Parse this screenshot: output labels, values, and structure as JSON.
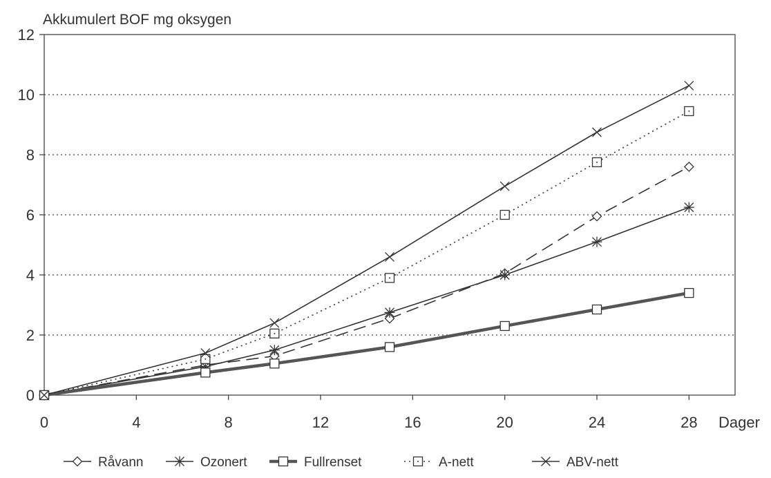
{
  "chart_data": {
    "type": "line",
    "title": "Akkumulert BOF mg oksygen",
    "xlabel": "Dager",
    "ylabel": "",
    "xlim": [
      0,
      30
    ],
    "ylim": [
      0,
      12
    ],
    "x_ticks": [
      0,
      4,
      8,
      12,
      16,
      20,
      24,
      28
    ],
    "y_ticks": [
      0,
      2,
      4,
      6,
      8,
      10,
      12
    ],
    "x_tick_labels": [
      "0",
      "4",
      "8",
      "12",
      "16",
      "20",
      "24",
      "28"
    ],
    "y_tick_labels": [
      "0",
      "2",
      "4",
      "6",
      "8",
      "10",
      "12"
    ],
    "grid": "horizontal dotted",
    "legend_position": "bottom",
    "x": [
      0,
      7,
      10,
      15,
      20,
      24,
      28
    ],
    "series": [
      {
        "name": "Råvann",
        "values": [
          0,
          1.0,
          1.3,
          2.55,
          4.05,
          5.95,
          7.6
        ],
        "marker": "diamond",
        "dash": "18 9",
        "width": 1.6,
        "color": "#333333"
      },
      {
        "name": "Ozonert",
        "values": [
          0,
          0.95,
          1.5,
          2.75,
          4.0,
          5.1,
          6.25
        ],
        "marker": "asterisk",
        "dash": "",
        "width": 1.6,
        "color": "#333333"
      },
      {
        "name": "Fullrenset",
        "values": [
          0,
          0.75,
          1.05,
          1.6,
          2.3,
          2.85,
          3.4
        ],
        "marker": "square",
        "dash": "",
        "width": 4.5,
        "color": "#555555"
      },
      {
        "name": "A-nett",
        "values": [
          0,
          1.2,
          2.05,
          3.9,
          6.0,
          7.75,
          9.45
        ],
        "marker": "dotsquare",
        "dash": "2 5",
        "width": 1.6,
        "color": "#333333"
      },
      {
        "name": "ABV-nett",
        "values": [
          0,
          1.4,
          2.4,
          4.6,
          6.95,
          8.75,
          10.3
        ],
        "marker": "x",
        "dash": "",
        "width": 1.6,
        "color": "#333333"
      }
    ]
  }
}
